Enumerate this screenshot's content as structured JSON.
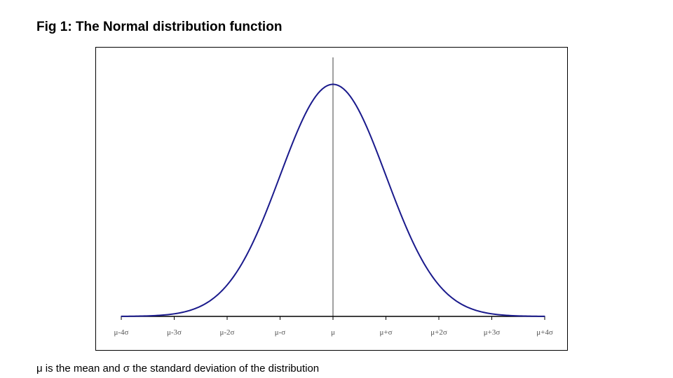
{
  "figure": {
    "title": "Fig 1: The Normal distribution function",
    "caption": "μ is the mean and σ the standard deviation of the distribution"
  },
  "colors": {
    "curve": "#1a1a8c",
    "mean_line": "#a0a0a0",
    "axis": "#000000",
    "frame": "#000000"
  },
  "chart_data": {
    "type": "line",
    "title": "Fig 1: The Normal distribution function",
    "xlabel": "",
    "ylabel": "",
    "xlim": [
      -4,
      4
    ],
    "ylim": [
      0,
      0.45
    ],
    "grid": false,
    "x_tick_values": [
      -4,
      -3,
      -2,
      -1,
      0,
      1,
      2,
      3,
      4
    ],
    "x_tick_labels": [
      "μ-4σ",
      "μ-3σ",
      "μ-2σ",
      "μ-σ",
      "μ",
      "μ+σ",
      "μ+2σ",
      "μ+3σ",
      "μ+4σ"
    ],
    "series": [
      {
        "x": [
          -4,
          -3.5,
          -3,
          -2.5,
          -2,
          -1.5,
          -1,
          -0.5,
          0,
          0.5,
          1,
          1.5,
          2,
          2.5,
          3,
          3.5,
          4
        ],
        "y": [
          0.0001,
          0.0009,
          0.0044,
          0.0175,
          0.054,
          0.1295,
          0.242,
          0.3521,
          0.3989,
          0.3521,
          0.242,
          0.1295,
          0.054,
          0.0175,
          0.0044,
          0.0009,
          0.0001
        ]
      }
    ],
    "reference_lines": [
      {
        "orientation": "vertical",
        "x": 0
      }
    ]
  }
}
